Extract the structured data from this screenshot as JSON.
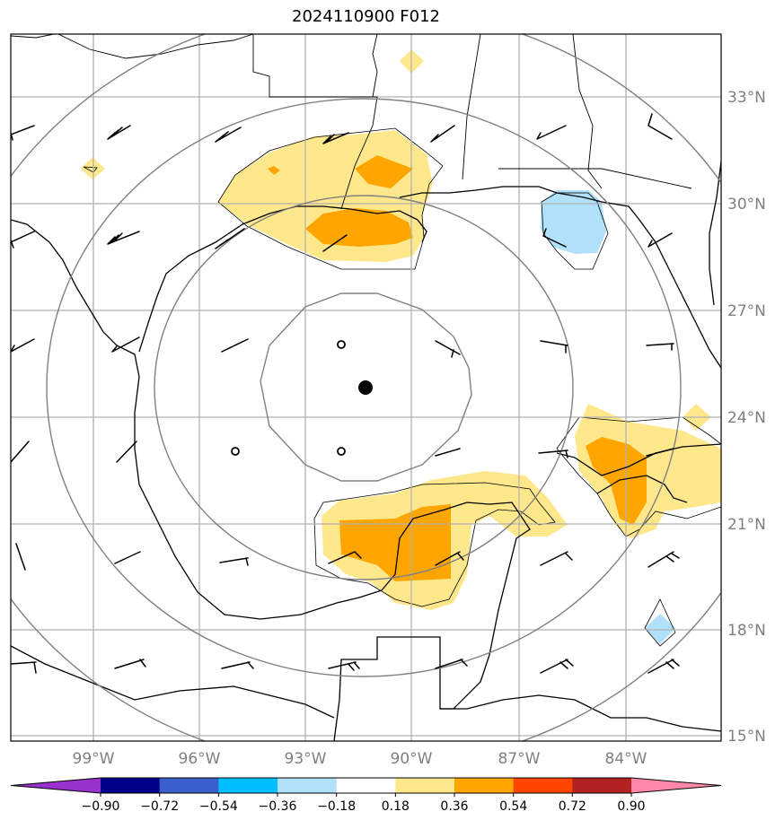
{
  "title": "2024110900 F012",
  "lon_labels": [
    "99°W",
    "96°W",
    "93°W",
    "90°W",
    "87°W",
    "84°W"
  ],
  "lat_labels": [
    "33°N",
    "30°N",
    "27°N",
    "24°N",
    "21°N",
    "18°N",
    "15°N"
  ],
  "colorbar": {
    "ticks": [
      "−0.90",
      "−0.72",
      "−0.54",
      "−0.36",
      "−0.18",
      "0.18",
      "0.36",
      "0.54",
      "0.72",
      "0.90"
    ],
    "colors": [
      "#9932cc",
      "#00008b",
      "#3a5fcd",
      "#00bfff",
      "#b0e0fa",
      "#ffffff",
      "#ffe88c",
      "#ffa500",
      "#ff4500",
      "#b22222",
      "#ff88aa"
    ]
  },
  "map_colors": {
    "light_yellow": "#ffe88c",
    "orange": "#ffa500",
    "light_blue": "#b0e0fa",
    "grid": "#b0b0b0",
    "range_rings": "#808080"
  }
}
